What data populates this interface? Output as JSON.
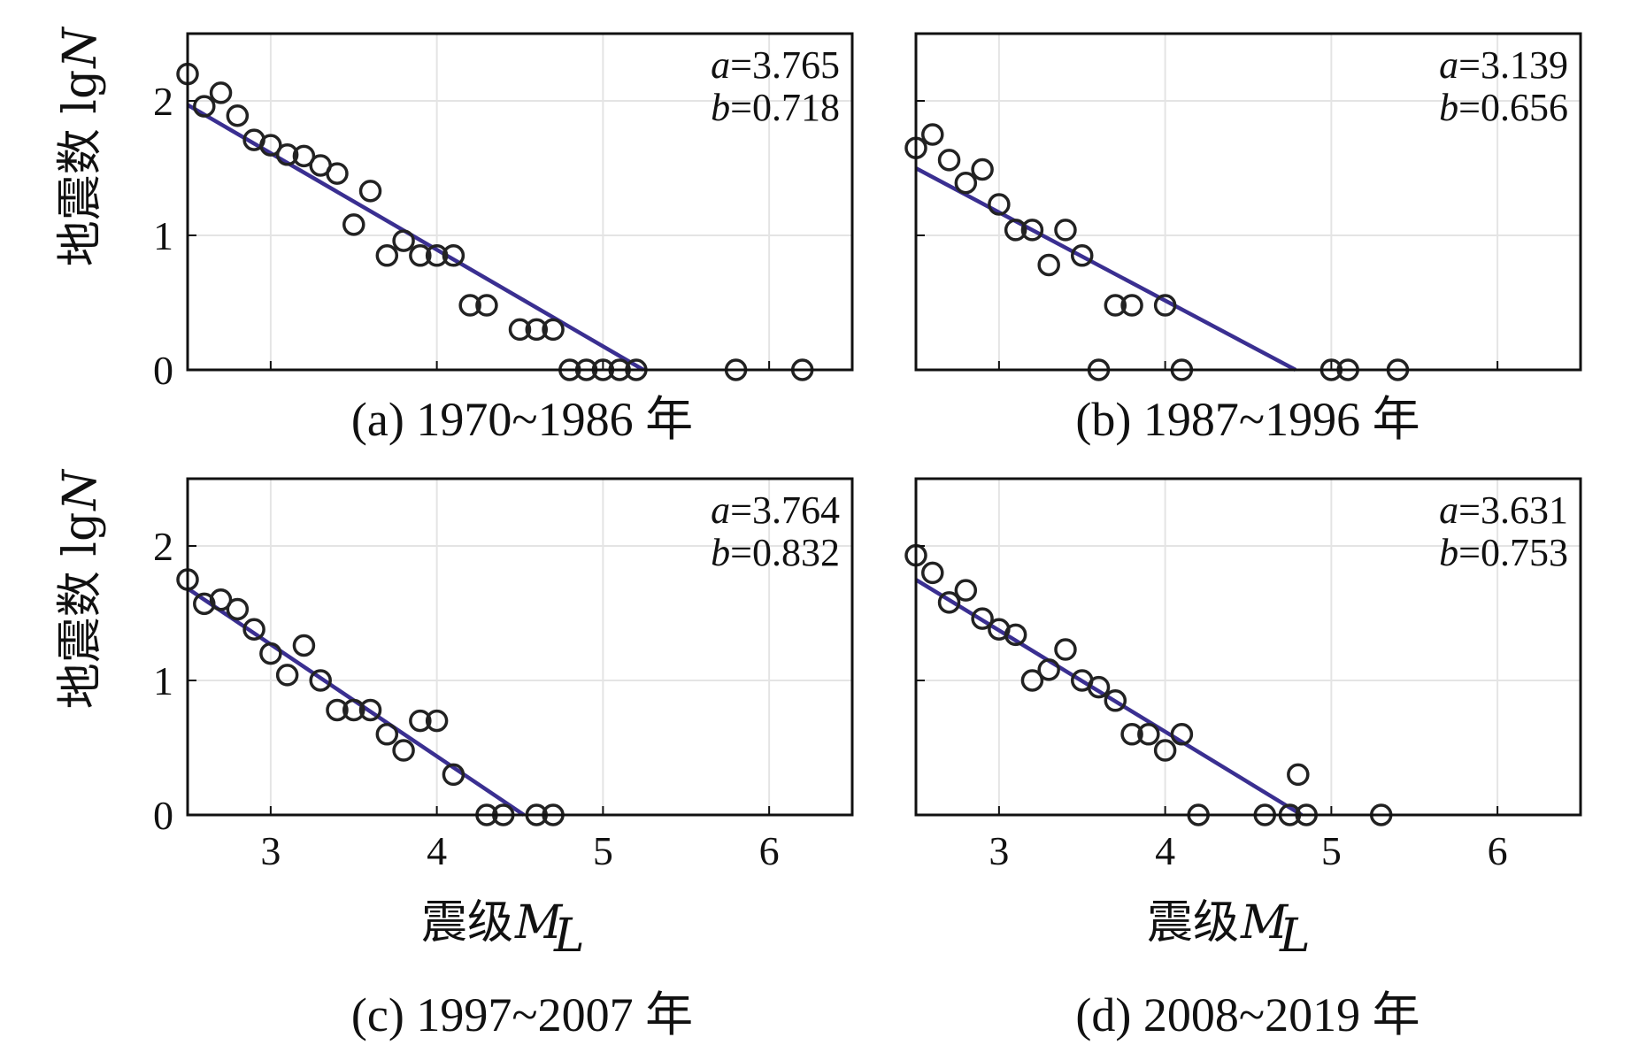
{
  "figure": {
    "ylabel_prefix": "地震数 lg",
    "ylabel_var": "N",
    "xlabel_prefix": "震级 ",
    "xlabel_var": "M",
    "xlabel_sub": "L"
  },
  "chart_data": [
    {
      "type": "scatter",
      "caption": "(a) 1970~1986 年",
      "xlim": [
        2.5,
        6.5
      ],
      "ylim": [
        0,
        2.5
      ],
      "xticks": [
        3,
        4,
        5,
        6
      ],
      "yticks": [
        0,
        1,
        2
      ],
      "a_label": "a",
      "a_value": "=3.765",
      "b_label": "b",
      "b_value": "=0.718",
      "fit": {
        "a": 3.765,
        "b": 0.718
      },
      "points": [
        {
          "x": 2.5,
          "y": 2.2
        },
        {
          "x": 2.6,
          "y": 1.96
        },
        {
          "x": 2.7,
          "y": 2.06
        },
        {
          "x": 2.8,
          "y": 1.89
        },
        {
          "x": 2.9,
          "y": 1.71
        },
        {
          "x": 3.0,
          "y": 1.67
        },
        {
          "x": 3.1,
          "y": 1.6
        },
        {
          "x": 3.2,
          "y": 1.59
        },
        {
          "x": 3.3,
          "y": 1.52
        },
        {
          "x": 3.4,
          "y": 1.46
        },
        {
          "x": 3.5,
          "y": 1.08
        },
        {
          "x": 3.6,
          "y": 1.33
        },
        {
          "x": 3.7,
          "y": 0.85
        },
        {
          "x": 3.8,
          "y": 0.96
        },
        {
          "x": 3.9,
          "y": 0.85
        },
        {
          "x": 4.0,
          "y": 0.85
        },
        {
          "x": 4.1,
          "y": 0.85
        },
        {
          "x": 4.2,
          "y": 0.48
        },
        {
          "x": 4.3,
          "y": 0.48
        },
        {
          "x": 4.5,
          "y": 0.3
        },
        {
          "x": 4.6,
          "y": 0.3
        },
        {
          "x": 4.7,
          "y": 0.3
        },
        {
          "x": 4.8,
          "y": 0.0
        },
        {
          "x": 4.9,
          "y": 0.0
        },
        {
          "x": 5.0,
          "y": 0.0
        },
        {
          "x": 5.1,
          "y": 0.0
        },
        {
          "x": 5.2,
          "y": 0.0
        },
        {
          "x": 5.8,
          "y": 0.0
        },
        {
          "x": 6.2,
          "y": 0.0
        }
      ]
    },
    {
      "type": "scatter",
      "caption": "(b) 1987~1996 年",
      "xlim": [
        2.5,
        6.5
      ],
      "ylim": [
        0,
        2.5
      ],
      "xticks": [
        3,
        4,
        5,
        6
      ],
      "yticks": [
        0,
        1,
        2
      ],
      "a_label": "a",
      "a_value": "=3.139",
      "b_label": "b",
      "b_value": "=0.656",
      "fit": {
        "a": 3.139,
        "b": 0.656
      },
      "points": [
        {
          "x": 2.5,
          "y": 1.65
        },
        {
          "x": 2.6,
          "y": 1.75
        },
        {
          "x": 2.7,
          "y": 1.56
        },
        {
          "x": 2.8,
          "y": 1.39
        },
        {
          "x": 2.9,
          "y": 1.49
        },
        {
          "x": 3.0,
          "y": 1.23
        },
        {
          "x": 3.1,
          "y": 1.04
        },
        {
          "x": 3.2,
          "y": 1.04
        },
        {
          "x": 3.3,
          "y": 0.78
        },
        {
          "x": 3.4,
          "y": 1.04
        },
        {
          "x": 3.5,
          "y": 0.85
        },
        {
          "x": 3.6,
          "y": 0.0
        },
        {
          "x": 3.7,
          "y": 0.48
        },
        {
          "x": 3.8,
          "y": 0.48
        },
        {
          "x": 4.0,
          "y": 0.48
        },
        {
          "x": 4.1,
          "y": 0.0
        },
        {
          "x": 5.0,
          "y": 0.0
        },
        {
          "x": 5.1,
          "y": 0.0
        },
        {
          "x": 5.4,
          "y": 0.0
        }
      ]
    },
    {
      "type": "scatter",
      "caption": "(c) 1997~2007 年",
      "xlim": [
        2.5,
        6.5
      ],
      "ylim": [
        0,
        2.5
      ],
      "xticks": [
        3,
        4,
        5,
        6
      ],
      "yticks": [
        0,
        1,
        2
      ],
      "a_label": "a",
      "a_value": "=3.764",
      "b_label": "b",
      "b_value": "=0.832",
      "fit": {
        "a": 3.764,
        "b": 0.832
      },
      "points": [
        {
          "x": 2.5,
          "y": 1.75
        },
        {
          "x": 2.6,
          "y": 1.57
        },
        {
          "x": 2.7,
          "y": 1.6
        },
        {
          "x": 2.8,
          "y": 1.53
        },
        {
          "x": 2.9,
          "y": 1.38
        },
        {
          "x": 3.0,
          "y": 1.2
        },
        {
          "x": 3.1,
          "y": 1.04
        },
        {
          "x": 3.2,
          "y": 1.26
        },
        {
          "x": 3.3,
          "y": 1.0
        },
        {
          "x": 3.4,
          "y": 0.78
        },
        {
          "x": 3.5,
          "y": 0.78
        },
        {
          "x": 3.6,
          "y": 0.78
        },
        {
          "x": 3.7,
          "y": 0.6
        },
        {
          "x": 3.8,
          "y": 0.48
        },
        {
          "x": 3.9,
          "y": 0.7
        },
        {
          "x": 4.0,
          "y": 0.7
        },
        {
          "x": 4.1,
          "y": 0.3
        },
        {
          "x": 4.3,
          "y": 0.0
        },
        {
          "x": 4.4,
          "y": 0.0
        },
        {
          "x": 4.6,
          "y": 0.0
        },
        {
          "x": 4.7,
          "y": 0.0
        }
      ]
    },
    {
      "type": "scatter",
      "caption": "(d) 2008~2019 年",
      "xlim": [
        2.5,
        6.5
      ],
      "ylim": [
        0,
        2.5
      ],
      "xticks": [
        3,
        4,
        5,
        6
      ],
      "yticks": [
        0,
        1,
        2
      ],
      "a_label": "a",
      "a_value": "=3.631",
      "b_label": "b",
      "b_value": "=0.753",
      "fit": {
        "a": 3.631,
        "b": 0.753
      },
      "points": [
        {
          "x": 2.5,
          "y": 1.93
        },
        {
          "x": 2.6,
          "y": 1.8
        },
        {
          "x": 2.7,
          "y": 1.58
        },
        {
          "x": 2.8,
          "y": 1.67
        },
        {
          "x": 2.9,
          "y": 1.46
        },
        {
          "x": 3.0,
          "y": 1.38
        },
        {
          "x": 3.1,
          "y": 1.34
        },
        {
          "x": 3.2,
          "y": 1.0
        },
        {
          "x": 3.3,
          "y": 1.08
        },
        {
          "x": 3.4,
          "y": 1.23
        },
        {
          "x": 3.5,
          "y": 1.0
        },
        {
          "x": 3.6,
          "y": 0.95
        },
        {
          "x": 3.7,
          "y": 0.85
        },
        {
          "x": 3.8,
          "y": 0.6
        },
        {
          "x": 3.9,
          "y": 0.6
        },
        {
          "x": 4.0,
          "y": 0.48
        },
        {
          "x": 4.1,
          "y": 0.6
        },
        {
          "x": 4.2,
          "y": 0.0
        },
        {
          "x": 4.6,
          "y": 0.0
        },
        {
          "x": 4.75,
          "y": 0.0
        },
        {
          "x": 4.8,
          "y": 0.3
        },
        {
          "x": 4.85,
          "y": 0.0
        },
        {
          "x": 5.3,
          "y": 0.0
        }
      ]
    }
  ]
}
